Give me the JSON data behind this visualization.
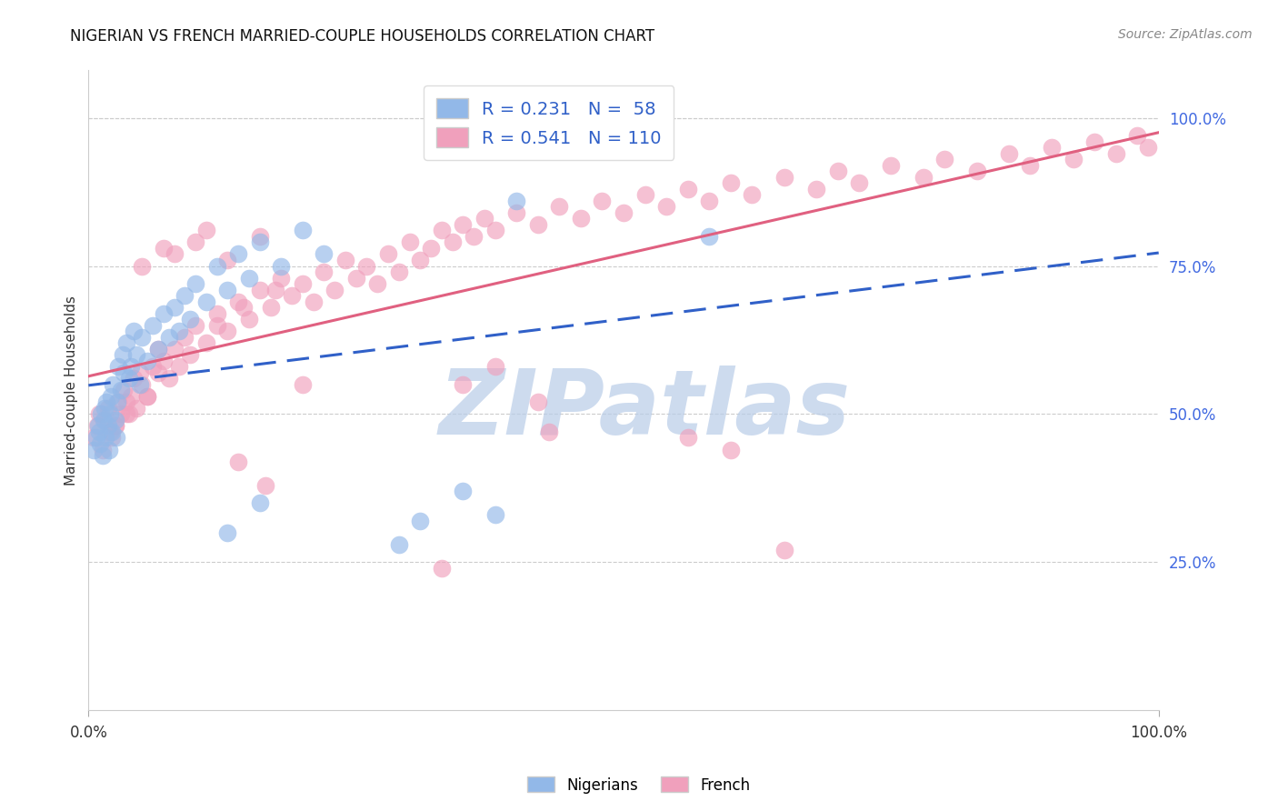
{
  "title": "NIGERIAN VS FRENCH MARRIED-COUPLE HOUSEHOLDS CORRELATION CHART",
  "source": "Source: ZipAtlas.com",
  "ylabel": "Married-couple Households",
  "xmin": 0.0,
  "xmax": 1.0,
  "ymin": 0.0,
  "ymax": 1.08,
  "ytick_positions": [
    0.25,
    0.5,
    0.75,
    1.0
  ],
  "ytick_labels": [
    "25.0%",
    "50.0%",
    "75.0%",
    "100.0%"
  ],
  "xtick_positions": [
    0.0,
    1.0
  ],
  "xtick_labels": [
    "0.0%",
    "100.0%"
  ],
  "nigerians_color": "#92b8e8",
  "french_color": "#f0a0bc",
  "trendline_nigerian_color": "#3060c8",
  "trendline_french_color": "#e06080",
  "right_tick_color": "#4169e1",
  "watermark": "ZIPatlas",
  "watermark_color": "#b8cce8",
  "background_color": "#ffffff",
  "legend_R_color": "#000000",
  "legend_N_color": "#000000",
  "legend_val_color": "#3060c8",
  "legend_entry1": {
    "R": "0.231",
    "N": "58"
  },
  "legend_entry2": {
    "R": "0.541",
    "N": "110"
  },
  "nigerian_x": [
    0.005,
    0.007,
    0.009,
    0.01,
    0.011,
    0.012,
    0.013,
    0.014,
    0.015,
    0.016,
    0.017,
    0.018,
    0.019,
    0.02,
    0.021,
    0.022,
    0.023,
    0.025,
    0.026,
    0.027,
    0.028,
    0.03,
    0.032,
    0.033,
    0.035,
    0.038,
    0.04,
    0.042,
    0.045,
    0.048,
    0.05,
    0.055,
    0.06,
    0.065,
    0.07,
    0.075,
    0.08,
    0.085,
    0.09,
    0.095,
    0.1,
    0.11,
    0.12,
    0.13,
    0.14,
    0.15,
    0.16,
    0.18,
    0.2,
    0.22,
    0.13,
    0.16,
    0.29,
    0.31,
    0.35,
    0.38,
    0.4,
    0.58
  ],
  "nigerian_y": [
    0.44,
    0.46,
    0.48,
    0.47,
    0.45,
    0.5,
    0.43,
    0.49,
    0.51,
    0.46,
    0.52,
    0.48,
    0.44,
    0.5,
    0.53,
    0.47,
    0.55,
    0.49,
    0.46,
    0.52,
    0.58,
    0.54,
    0.6,
    0.57,
    0.62,
    0.56,
    0.58,
    0.64,
    0.6,
    0.55,
    0.63,
    0.59,
    0.65,
    0.61,
    0.67,
    0.63,
    0.68,
    0.64,
    0.7,
    0.66,
    0.72,
    0.69,
    0.75,
    0.71,
    0.77,
    0.73,
    0.79,
    0.75,
    0.81,
    0.77,
    0.3,
    0.35,
    0.28,
    0.32,
    0.37,
    0.33,
    0.86,
    0.8
  ],
  "french_x": [
    0.005,
    0.008,
    0.01,
    0.013,
    0.015,
    0.018,
    0.02,
    0.022,
    0.025,
    0.028,
    0.03,
    0.033,
    0.035,
    0.038,
    0.04,
    0.042,
    0.045,
    0.048,
    0.05,
    0.055,
    0.06,
    0.065,
    0.07,
    0.075,
    0.08,
    0.085,
    0.09,
    0.095,
    0.1,
    0.11,
    0.12,
    0.13,
    0.14,
    0.15,
    0.16,
    0.17,
    0.18,
    0.19,
    0.2,
    0.21,
    0.22,
    0.23,
    0.24,
    0.25,
    0.26,
    0.27,
    0.28,
    0.29,
    0.3,
    0.31,
    0.32,
    0.33,
    0.34,
    0.35,
    0.36,
    0.37,
    0.38,
    0.4,
    0.42,
    0.44,
    0.46,
    0.48,
    0.5,
    0.52,
    0.54,
    0.56,
    0.58,
    0.6,
    0.62,
    0.65,
    0.68,
    0.7,
    0.72,
    0.75,
    0.78,
    0.8,
    0.83,
    0.86,
    0.88,
    0.9,
    0.92,
    0.94,
    0.96,
    0.98,
    0.99,
    0.14,
    0.165,
    0.33,
    0.35,
    0.43,
    0.56,
    0.6,
    0.65,
    0.38,
    0.42,
    0.2,
    0.08,
    0.1,
    0.05,
    0.07,
    0.11,
    0.13,
    0.16,
    0.025,
    0.035,
    0.055,
    0.065,
    0.12,
    0.145,
    0.175
  ],
  "french_y": [
    0.46,
    0.48,
    0.5,
    0.44,
    0.49,
    0.51,
    0.47,
    0.46,
    0.48,
    0.52,
    0.5,
    0.54,
    0.52,
    0.5,
    0.53,
    0.56,
    0.51,
    0.57,
    0.55,
    0.53,
    0.58,
    0.61,
    0.59,
    0.56,
    0.61,
    0.58,
    0.63,
    0.6,
    0.65,
    0.62,
    0.67,
    0.64,
    0.69,
    0.66,
    0.71,
    0.68,
    0.73,
    0.7,
    0.72,
    0.69,
    0.74,
    0.71,
    0.76,
    0.73,
    0.75,
    0.72,
    0.77,
    0.74,
    0.79,
    0.76,
    0.78,
    0.81,
    0.79,
    0.82,
    0.8,
    0.83,
    0.81,
    0.84,
    0.82,
    0.85,
    0.83,
    0.86,
    0.84,
    0.87,
    0.85,
    0.88,
    0.86,
    0.89,
    0.87,
    0.9,
    0.88,
    0.91,
    0.89,
    0.92,
    0.9,
    0.93,
    0.91,
    0.94,
    0.92,
    0.95,
    0.93,
    0.96,
    0.94,
    0.97,
    0.95,
    0.42,
    0.38,
    0.24,
    0.55,
    0.47,
    0.46,
    0.44,
    0.27,
    0.58,
    0.52,
    0.55,
    0.77,
    0.79,
    0.75,
    0.78,
    0.81,
    0.76,
    0.8,
    0.48,
    0.5,
    0.53,
    0.57,
    0.65,
    0.68,
    0.71
  ]
}
